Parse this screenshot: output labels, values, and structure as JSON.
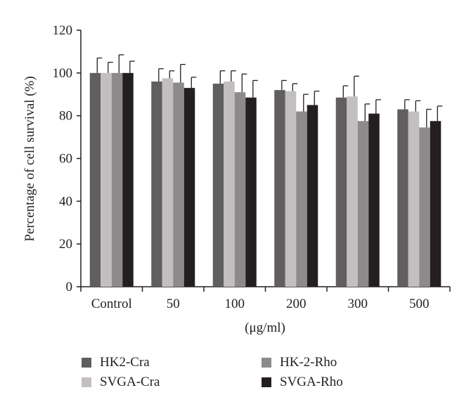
{
  "chart_data": {
    "type": "bar",
    "categories": [
      "Control",
      "50",
      "100",
      "200",
      "300",
      "500"
    ],
    "xlabel": "(μg/ml)",
    "ylabel": "Percentage of cell survival (%)",
    "ylim": [
      0,
      120
    ],
    "yticks": [
      0,
      20,
      40,
      60,
      80,
      100,
      120
    ],
    "grid": false,
    "legend_position": "bottom",
    "series": [
      {
        "name": "HK2-Cra",
        "color": "#605e5e",
        "values": [
          100,
          96,
          95,
          92,
          88.5,
          83
        ],
        "errors": [
          7,
          6,
          6,
          4.5,
          5.5,
          4.5
        ]
      },
      {
        "name": "SVGA-Cra",
        "color": "#c4bfbf",
        "values": [
          100,
          97.5,
          96,
          91.5,
          89,
          82
        ],
        "errors": [
          5,
          3.5,
          5,
          3.5,
          9.5,
          5
        ]
      },
      {
        "name": "HK-2-Rho",
        "color": "#8c8a8a",
        "values": [
          100,
          95.5,
          91,
          82,
          77.5,
          74.5
        ],
        "errors": [
          8.5,
          8.5,
          8.5,
          8,
          8,
          8.5
        ]
      },
      {
        "name": "SVGA-Rho",
        "color": "#231f20",
        "values": [
          100,
          93,
          88.5,
          85,
          81,
          77.5
        ],
        "errors": [
          5.5,
          5,
          8,
          6.5,
          6.5,
          7
        ]
      }
    ]
  }
}
